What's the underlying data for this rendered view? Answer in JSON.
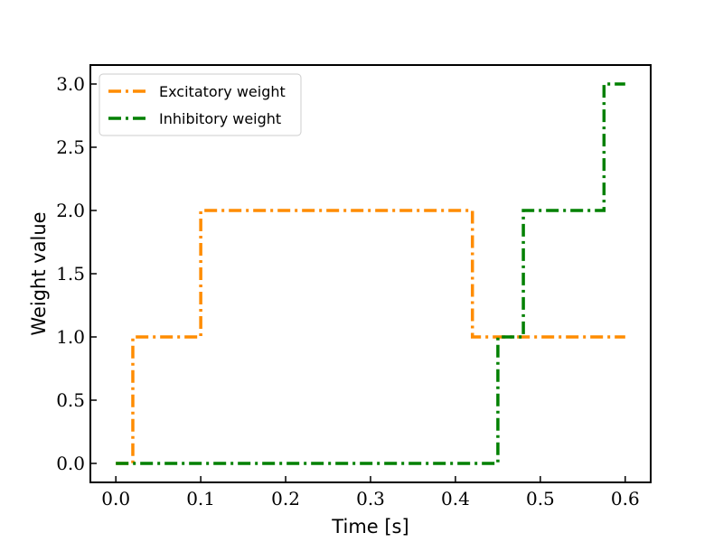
{
  "chart_data": {
    "type": "line",
    "step": true,
    "xlabel": "Time [s]",
    "ylabel": "Weight value",
    "xlim": [
      -0.03,
      0.63
    ],
    "ylim": [
      -0.15,
      3.15
    ],
    "xticks": [
      0.0,
      0.1,
      0.2,
      0.3,
      0.4,
      0.5,
      0.6
    ],
    "xtick_labels": [
      "0.0",
      "0.1",
      "0.2",
      "0.3",
      "0.4",
      "0.5",
      "0.6"
    ],
    "yticks": [
      0.0,
      0.5,
      1.0,
      1.5,
      2.0,
      2.5,
      3.0
    ],
    "ytick_labels": [
      "0.0",
      "0.5",
      "1.0",
      "1.5",
      "2.0",
      "2.5",
      "3.0"
    ],
    "grid": false,
    "legend_position": "top-left",
    "series": [
      {
        "name": "Excitatory weight",
        "color": "#ff8c00",
        "linestyle": "dashdot",
        "x": [
          0.0,
          0.02,
          0.02,
          0.1,
          0.1,
          0.42,
          0.42,
          0.6
        ],
        "y": [
          0.0,
          0.0,
          1.0,
          1.0,
          2.0,
          2.0,
          1.0,
          1.0
        ]
      },
      {
        "name": "Inhibitory weight",
        "color": "#008000",
        "linestyle": "dashdot",
        "x": [
          0.0,
          0.45,
          0.45,
          0.48,
          0.48,
          0.575,
          0.575,
          0.6
        ],
        "y": [
          0.0,
          0.0,
          1.0,
          1.0,
          2.0,
          2.0,
          3.0,
          3.0
        ]
      }
    ]
  }
}
